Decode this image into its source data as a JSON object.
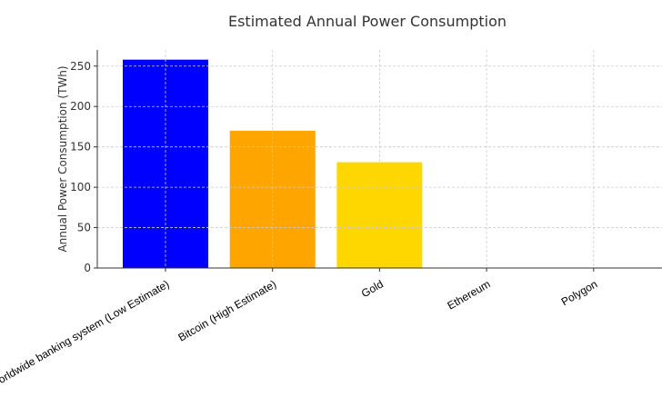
{
  "chart_data": {
    "type": "bar",
    "title": "Estimated Annual Power Consumption",
    "xlabel": "",
    "ylabel": "Annual Power Consumption (TWh)",
    "categories": [
      "Worldwide banking system (Low Estimate)",
      "Bitcoin (High Estimate)",
      "Gold",
      "Ethereum",
      "Polygon"
    ],
    "values": [
      258,
      170,
      131,
      0.01,
      0.0001
    ],
    "colors": [
      "#0000ff",
      "#ffa500",
      "#ffd700",
      "#800080",
      "#008000"
    ],
    "ylim": [
      0,
      270
    ],
    "yticks": [
      0,
      50,
      100,
      150,
      200,
      250
    ],
    "grid": true
  }
}
